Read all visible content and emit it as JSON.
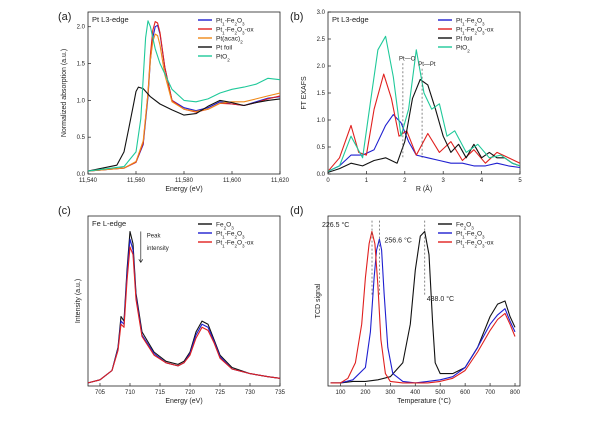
{
  "chart_data": [
    {
      "panel_label": "(a)",
      "type": "line",
      "title": "Pt L3-edge",
      "xlabel": "Energy (eV)",
      "ylabel": "Normalized absorption (a.u.)",
      "xlim": [
        11540,
        11620
      ],
      "ylim": [
        0,
        2.2
      ],
      "xticks": [
        "11,540",
        "11,560",
        "11,580",
        "11,600",
        "11,620"
      ],
      "yticks": [
        "0.0",
        "0.5",
        "1.0",
        "1.5",
        "2.0"
      ],
      "legend_position": "top-right",
      "series": [
        {
          "name": "Pt1-Fe2O3",
          "color": "#1f1fd0",
          "x": [
            11540,
            11555,
            11560,
            11563,
            11565,
            11566,
            11567,
            11568,
            11569,
            11570,
            11572,
            11575,
            11580,
            11585,
            11590,
            11595,
            11600,
            11605,
            11610,
            11615,
            11620
          ],
          "y": [
            0.04,
            0.08,
            0.16,
            0.4,
            1.05,
            1.55,
            1.85,
            2.0,
            2.02,
            1.9,
            1.45,
            1.0,
            0.9,
            0.86,
            0.9,
            0.98,
            0.95,
            0.93,
            0.98,
            1.03,
            1.05
          ]
        },
        {
          "name": "Pt1-Fe2O3-ox",
          "color": "#e0201e",
          "x": [
            11540,
            11555,
            11560,
            11563,
            11565,
            11566,
            11567,
            11568,
            11569,
            11570,
            11572,
            11575,
            11580,
            11585,
            11590,
            11595,
            11600,
            11605,
            11610,
            11615,
            11620
          ],
          "y": [
            0.04,
            0.08,
            0.16,
            0.42,
            1.1,
            1.62,
            1.95,
            2.07,
            2.05,
            1.92,
            1.45,
            1.0,
            0.88,
            0.84,
            0.88,
            0.96,
            0.95,
            0.93,
            0.97,
            1.02,
            1.06
          ]
        },
        {
          "name": "Pt(acac)2",
          "color": "#f08a1a",
          "x": [
            11540,
            11555,
            11560,
            11563,
            11565,
            11566,
            11567,
            11568,
            11569,
            11570,
            11572,
            11575,
            11580,
            11585,
            11590,
            11595,
            11600,
            11605,
            11610,
            11615,
            11620
          ],
          "y": [
            0.04,
            0.08,
            0.17,
            0.45,
            1.1,
            1.55,
            1.8,
            1.9,
            1.88,
            1.75,
            1.35,
            0.98,
            0.88,
            0.85,
            0.88,
            0.96,
            0.98,
            0.98,
            1.02,
            1.06,
            1.1
          ]
        },
        {
          "name": "Pt foil",
          "color": "#111111",
          "x": [
            11540,
            11552,
            11555,
            11557,
            11559,
            11560,
            11561,
            11563,
            11566,
            11570,
            11575,
            11580,
            11585,
            11590,
            11595,
            11600,
            11605,
            11610,
            11615,
            11620
          ],
          "y": [
            0.04,
            0.12,
            0.3,
            0.62,
            0.95,
            1.12,
            1.18,
            1.16,
            1.05,
            0.95,
            0.87,
            0.8,
            0.82,
            0.92,
            1.0,
            0.97,
            0.93,
            0.97,
            1.0,
            1.02
          ]
        },
        {
          "name": "PtO2",
          "color": "#1fc99a",
          "x": [
            11540,
            11555,
            11560,
            11562,
            11563,
            11564,
            11565,
            11566,
            11567,
            11568,
            11570,
            11575,
            11580,
            11585,
            11590,
            11595,
            11600,
            11605,
            11610,
            11615,
            11620
          ],
          "y": [
            0.04,
            0.1,
            0.3,
            0.75,
            1.3,
            1.85,
            2.08,
            2.0,
            1.85,
            1.7,
            1.5,
            1.15,
            1.0,
            0.98,
            1.02,
            1.1,
            1.15,
            1.18,
            1.22,
            1.3,
            1.28
          ]
        }
      ]
    },
    {
      "panel_label": "(b)",
      "type": "line",
      "title": "Pt L3-edge",
      "xlabel": "R (Å)",
      "ylabel": "FT EXAFS",
      "xlim": [
        0,
        5
      ],
      "ylim": [
        0,
        3
      ],
      "xticks": [
        "0",
        "1",
        "2",
        "3",
        "4",
        "5"
      ],
      "yticks": [
        "0.0",
        "0.5",
        "1.0",
        "1.5",
        "2.0",
        "2.5",
        "3.0"
      ],
      "annotations": [
        "Pt—O",
        "Pt—Pt"
      ],
      "legend_position": "top-right",
      "series": [
        {
          "name": "Pt1-Fe2O3",
          "color": "#1f1fd0",
          "x": [
            0,
            0.3,
            0.6,
            0.9,
            1.2,
            1.5,
            1.7,
            1.9,
            2.1,
            2.3,
            2.6,
            2.9,
            3.2,
            3.5,
            3.8,
            4.1,
            4.4,
            4.7,
            5.0
          ],
          "y": [
            0.05,
            0.15,
            0.35,
            0.35,
            0.45,
            0.9,
            1.1,
            0.95,
            0.6,
            0.35,
            0.3,
            0.25,
            0.2,
            0.2,
            0.15,
            0.15,
            0.2,
            0.15,
            0.12
          ]
        },
        {
          "name": "Pt1-Fe2O3-ox",
          "color": "#e0201e",
          "x": [
            0,
            0.3,
            0.6,
            0.8,
            1.0,
            1.2,
            1.45,
            1.65,
            1.85,
            2.05,
            2.3,
            2.6,
            2.9,
            3.2,
            3.5,
            3.8,
            4.1,
            4.4,
            4.7,
            5.0
          ],
          "y": [
            0.05,
            0.3,
            0.9,
            0.4,
            0.35,
            1.2,
            1.85,
            1.4,
            0.7,
            0.8,
            0.35,
            0.75,
            0.4,
            0.6,
            0.25,
            0.45,
            0.2,
            0.4,
            0.3,
            0.2
          ]
        },
        {
          "name": "Pt foil",
          "color": "#111111",
          "x": [
            0,
            0.3,
            0.6,
            0.9,
            1.2,
            1.5,
            1.8,
            2.0,
            2.2,
            2.4,
            2.6,
            2.8,
            3.0,
            3.2,
            3.4,
            3.6,
            3.8,
            4.0,
            4.2,
            4.4,
            4.6,
            4.8,
            5.0
          ],
          "y": [
            0.03,
            0.1,
            0.2,
            0.15,
            0.25,
            0.3,
            0.2,
            0.6,
            1.4,
            1.75,
            1.65,
            1.2,
            0.7,
            0.4,
            0.55,
            0.3,
            0.55,
            0.3,
            0.4,
            0.3,
            0.3,
            0.2,
            0.15
          ]
        },
        {
          "name": "PtO2",
          "color": "#1fc99a",
          "x": [
            0,
            0.3,
            0.6,
            0.9,
            1.1,
            1.3,
            1.5,
            1.7,
            1.9,
            2.1,
            2.3,
            2.5,
            2.7,
            2.9,
            3.1,
            3.3,
            3.6,
            3.9,
            4.2,
            4.5,
            4.8,
            5.0
          ],
          "y": [
            0.05,
            0.15,
            0.7,
            0.3,
            1.3,
            2.3,
            2.55,
            1.8,
            0.7,
            1.2,
            2.3,
            1.5,
            1.2,
            1.3,
            0.7,
            0.8,
            0.4,
            0.55,
            0.3,
            0.35,
            0.2,
            0.15
          ]
        }
      ]
    },
    {
      "panel_label": "(c)",
      "type": "line",
      "title": "Fe L-edge",
      "xlabel": "Energy (eV)",
      "ylabel": "Intensity (a.u.)",
      "xlim": [
        703,
        735
      ],
      "ylim": [
        0,
        1.1
      ],
      "xticks": [
        "705",
        "710",
        "715",
        "720",
        "725",
        "730",
        "735"
      ],
      "yticks": [],
      "annotations": [
        "Peak",
        "intensity"
      ],
      "legend_position": "top-right",
      "series": [
        {
          "name": "Fe2O3",
          "color": "#111111",
          "x": [
            703,
            705,
            707,
            708,
            708.5,
            709,
            709.5,
            710,
            710.5,
            711,
            712,
            714,
            716,
            718,
            719,
            720,
            721,
            722,
            723,
            724,
            725,
            727,
            730,
            733,
            735
          ],
          "y": [
            0.02,
            0.04,
            0.1,
            0.25,
            0.45,
            0.42,
            0.75,
            1.0,
            0.92,
            0.6,
            0.35,
            0.22,
            0.16,
            0.14,
            0.16,
            0.22,
            0.35,
            0.42,
            0.4,
            0.3,
            0.2,
            0.12,
            0.08,
            0.06,
            0.05
          ]
        },
        {
          "name": "Pt1-Fe2O3",
          "color": "#1f1fd0",
          "x": [
            703,
            705,
            707,
            708,
            708.5,
            709,
            709.5,
            710,
            710.5,
            711,
            712,
            714,
            716,
            718,
            719,
            720,
            721,
            722,
            723,
            724,
            725,
            727,
            730,
            733,
            735
          ],
          "y": [
            0.02,
            0.04,
            0.1,
            0.24,
            0.42,
            0.4,
            0.72,
            0.95,
            0.88,
            0.58,
            0.33,
            0.21,
            0.15,
            0.13,
            0.15,
            0.21,
            0.33,
            0.4,
            0.38,
            0.29,
            0.19,
            0.11,
            0.08,
            0.06,
            0.05
          ]
        },
        {
          "name": "Pt1-Fe2O3-ox",
          "color": "#e0201e",
          "x": [
            703,
            705,
            707,
            708,
            708.5,
            709,
            709.5,
            710,
            710.5,
            711,
            712,
            714,
            716,
            718,
            719,
            720,
            721,
            722,
            723,
            724,
            725,
            727,
            730,
            733,
            735
          ],
          "y": [
            0.02,
            0.04,
            0.1,
            0.23,
            0.4,
            0.38,
            0.68,
            0.9,
            0.85,
            0.56,
            0.32,
            0.2,
            0.15,
            0.13,
            0.15,
            0.2,
            0.31,
            0.38,
            0.36,
            0.28,
            0.18,
            0.11,
            0.08,
            0.06,
            0.05
          ]
        }
      ]
    },
    {
      "panel_label": "(d)",
      "type": "line",
      "title": "",
      "xlabel": "Temperature (°C)",
      "ylabel": "TCD signal",
      "xlim": [
        50,
        820
      ],
      "ylim": [
        0,
        1.1
      ],
      "xticks": [
        "100",
        "200",
        "300",
        "400",
        "500",
        "600",
        "700",
        "800"
      ],
      "yticks": [],
      "annotations": [
        "226.5 °C",
        "256.6 °C",
        "438.0 °C"
      ],
      "legend_position": "top-right",
      "series": [
        {
          "name": "Fe2O3",
          "color": "#111111",
          "x": [
            60,
            100,
            150,
            200,
            250,
            300,
            350,
            380,
            400,
            420,
            438,
            455,
            470,
            480,
            500,
            550,
            600,
            650,
            700,
            730,
            760,
            780,
            800
          ],
          "y": [
            0.02,
            0.02,
            0.03,
            0.03,
            0.04,
            0.06,
            0.15,
            0.4,
            0.75,
            0.97,
            1.0,
            0.85,
            0.4,
            0.15,
            0.08,
            0.08,
            0.12,
            0.25,
            0.45,
            0.53,
            0.55,
            0.45,
            0.38
          ]
        },
        {
          "name": "Pt1-Fe2O3",
          "color": "#1f1fd0",
          "x": [
            60,
            100,
            150,
            200,
            220,
            235,
            245,
            256,
            265,
            275,
            290,
            310,
            350,
            400,
            450,
            500,
            550,
            600,
            650,
            700,
            730,
            760,
            780,
            800
          ],
          "y": [
            0.02,
            0.02,
            0.04,
            0.12,
            0.35,
            0.7,
            0.88,
            0.95,
            0.88,
            0.6,
            0.25,
            0.08,
            0.03,
            0.02,
            0.03,
            0.04,
            0.06,
            0.12,
            0.25,
            0.4,
            0.46,
            0.5,
            0.42,
            0.35
          ]
        },
        {
          "name": "Pt1-Fe2O3-ox",
          "color": "#e0201e",
          "x": [
            60,
            100,
            130,
            160,
            185,
            200,
            215,
            226,
            238,
            250,
            262,
            280,
            300,
            350,
            400,
            450,
            500,
            550,
            600,
            650,
            700,
            730,
            760,
            780,
            800
          ],
          "y": [
            0.02,
            0.02,
            0.05,
            0.15,
            0.4,
            0.7,
            0.92,
            1.0,
            0.92,
            0.65,
            0.3,
            0.08,
            0.03,
            0.02,
            0.02,
            0.02,
            0.03,
            0.05,
            0.1,
            0.22,
            0.36,
            0.43,
            0.47,
            0.4,
            0.32
          ]
        }
      ]
    }
  ]
}
